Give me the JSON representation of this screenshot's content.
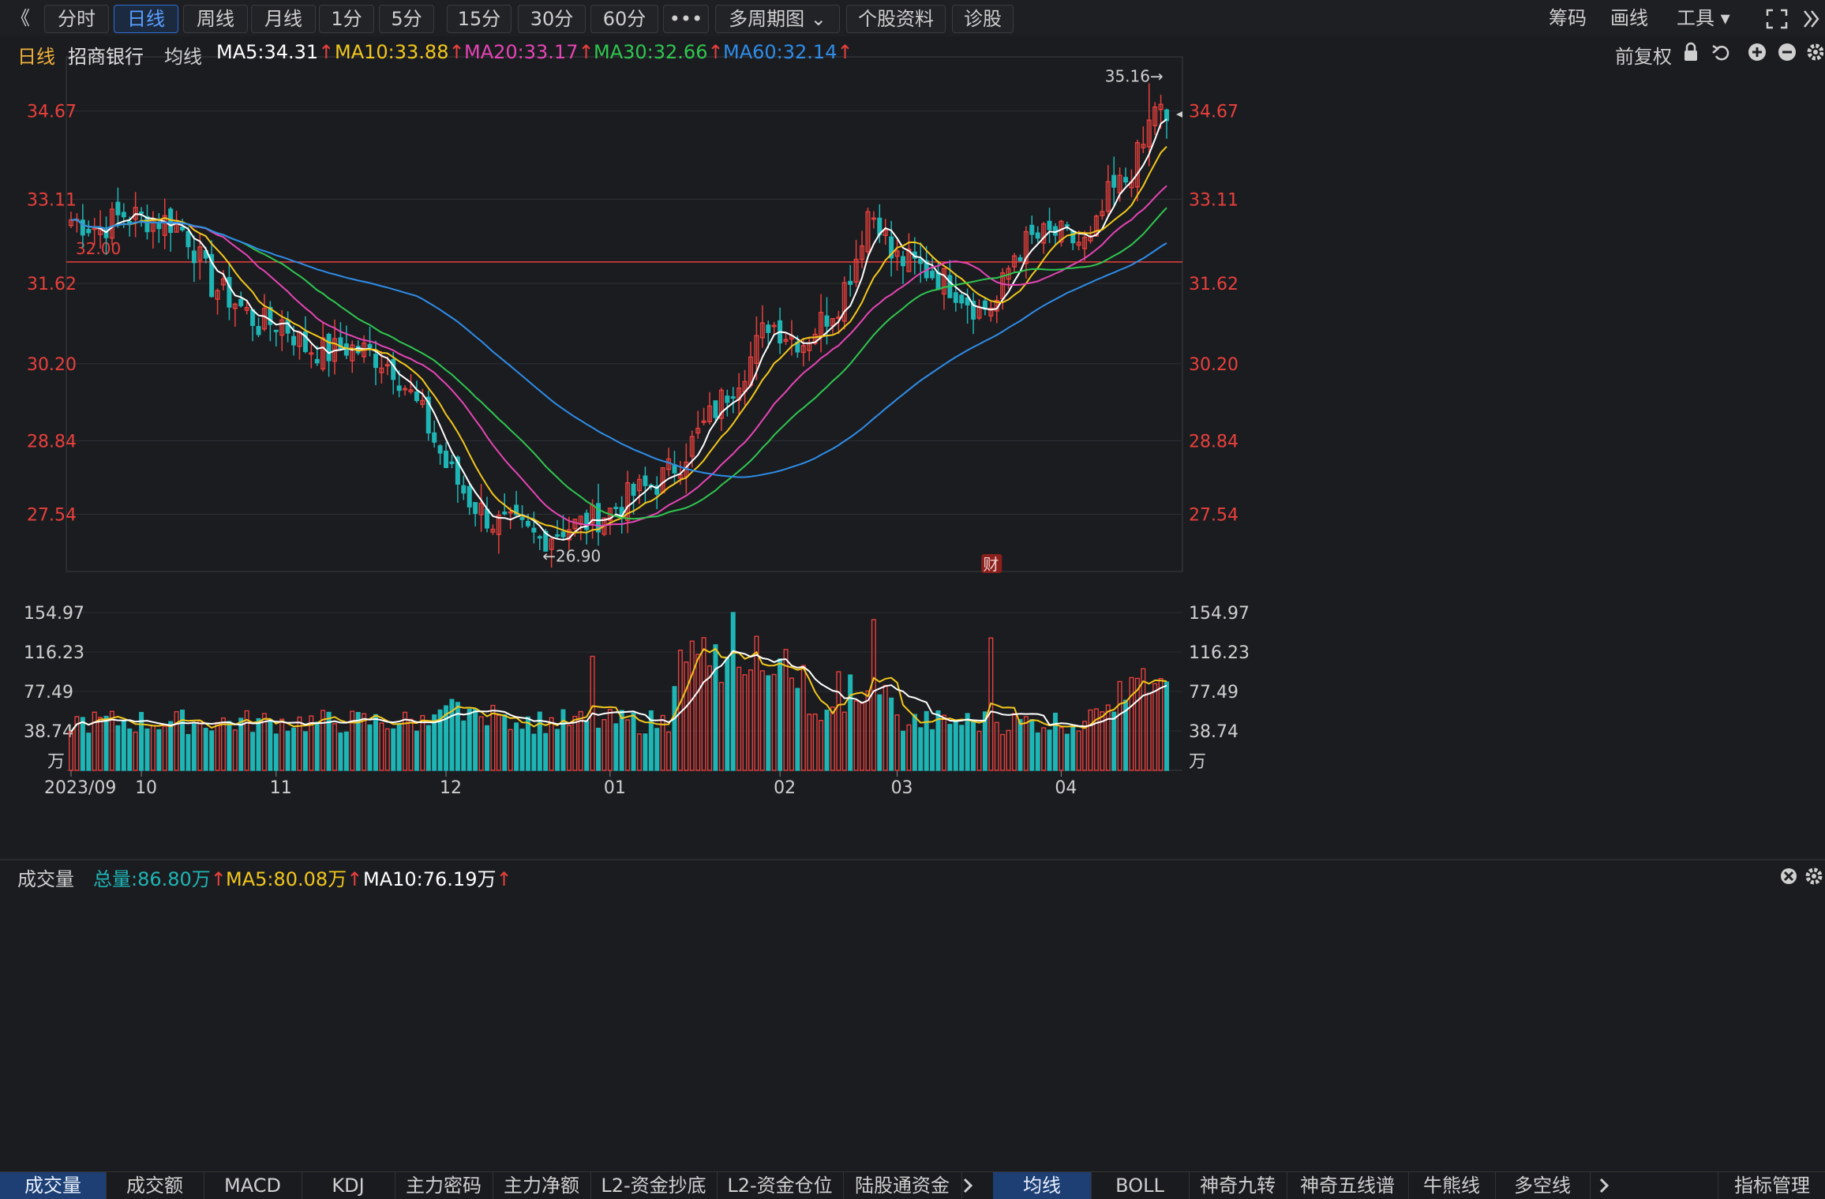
{
  "toolbar": {
    "back": "《",
    "items": [
      "分时",
      "日线",
      "周线",
      "月线",
      "1分",
      "5分",
      "15分",
      "30分",
      "60分",
      "•••",
      "多周期图 ⌄",
      "个股资料",
      "诊股"
    ],
    "active_index": 1,
    "right": [
      "筹码",
      "画线",
      "工具 ▾"
    ]
  },
  "info": {
    "period": "日线",
    "name": "招商银行",
    "ma_label": "均线",
    "ma5": "MA5:34.31",
    "ma10": "MA10:33.88",
    "ma20": "MA20:33.17",
    "ma30": "MA30:32.66",
    "ma60": "MA60:32.14",
    "adjust": "前复权"
  },
  "volume_info": {
    "label": "成交量",
    "total": "总量:86.80万",
    "ma5": "MA5:80.08万",
    "ma10": "MA10:76.19万"
  },
  "colors": {
    "up": "#e8403c",
    "down": "#1fb5b5",
    "ma5": "#ffffff",
    "ma10": "#f2c71c",
    "ma20": "#e545b4",
    "ma30": "#2fc64f",
    "ma60": "#2e8de8"
  },
  "bottom_tabs_left": [
    "成交量",
    "成交额",
    "MACD",
    "KDJ",
    "主力密码",
    "主力净额",
    "L2-资金抄底",
    "L2-资金仓位",
    "陆股通资金"
  ],
  "bottom_tabs_right": [
    "均线",
    "BOLL",
    "神奇九转",
    "神奇五线谱",
    "牛熊线",
    "多空线"
  ],
  "bottom_manage": "指标管理",
  "chart_data": {
    "type": "candlestick",
    "price_axis": {
      "ticks": [
        "34.67",
        "33.11",
        "31.62",
        "30.20",
        "28.84",
        "27.54"
      ],
      "ylim": [
        26.5,
        35.6
      ]
    },
    "volume_axis": {
      "ticks": [
        "154.97",
        "116.23",
        "77.49",
        "38.74"
      ],
      "unit": "万",
      "ylim": [
        0,
        155
      ]
    },
    "x_ticks": [
      {
        "label": "2023/09",
        "index": 0
      },
      {
        "label": "10",
        "index": 12
      },
      {
        "label": "11",
        "index": 35
      },
      {
        "label": "12",
        "index": 64
      },
      {
        "label": "01",
        "index": 92
      },
      {
        "label": "02",
        "index": 121
      },
      {
        "label": "03",
        "index": 141
      },
      {
        "label": "04",
        "index": 169
      }
    ],
    "annotations": {
      "high": "35.16→",
      "low": "←26.90",
      "ref_line_label": "32.00",
      "ref_line_value": 32.0,
      "event_marker": "财"
    },
    "count": 197,
    "waypoints": [
      [
        0,
        32.75
      ],
      [
        5,
        32.6
      ],
      [
        9,
        32.85
      ],
      [
        14,
        32.75
      ],
      [
        18,
        32.7
      ],
      [
        20,
        32.45
      ],
      [
        24,
        31.6
      ],
      [
        28,
        31.3
      ],
      [
        32,
        30.9
      ],
      [
        36,
        30.95
      ],
      [
        40,
        30.5
      ],
      [
        44,
        30.4
      ],
      [
        47,
        30.5
      ],
      [
        51,
        30.4
      ],
      [
        55,
        30.15
      ],
      [
        60,
        29.3
      ],
      [
        64,
        28.4
      ],
      [
        68,
        27.8
      ],
      [
        72,
        27.4
      ],
      [
        76,
        27.3
      ],
      [
        80,
        27.1
      ],
      [
        84,
        27.3
      ],
      [
        88,
        27.4
      ],
      [
        92,
        27.6
      ],
      [
        96,
        27.9
      ],
      [
        100,
        28.1
      ],
      [
        104,
        28.5
      ],
      [
        108,
        29.1
      ],
      [
        112,
        29.7
      ],
      [
        116,
        30.3
      ],
      [
        119,
        30.95
      ],
      [
        122,
        30.75
      ],
      [
        125,
        30.6
      ],
      [
        128,
        30.95
      ],
      [
        131,
        31.3
      ],
      [
        134,
        32.1
      ],
      [
        136,
        32.9
      ],
      [
        138,
        32.75
      ],
      [
        140,
        32.1
      ],
      [
        144,
        31.95
      ],
      [
        148,
        31.75
      ],
      [
        152,
        31.45
      ],
      [
        155,
        31.15
      ],
      [
        158,
        31.3
      ],
      [
        161,
        32.15
      ],
      [
        164,
        32.4
      ],
      [
        168,
        32.5
      ],
      [
        172,
        32.35
      ],
      [
        174,
        32.3
      ],
      [
        177,
        33.15
      ],
      [
        180,
        33.45
      ],
      [
        183,
        34.05
      ],
      [
        185,
        34.8
      ],
      [
        187,
        34.5
      ]
    ],
    "series": [
      {
        "name": "MA5",
        "values": [
          34.31
        ]
      },
      {
        "name": "MA10",
        "values": [
          33.88
        ]
      },
      {
        "name": "MA20",
        "values": [
          33.17
        ]
      },
      {
        "name": "MA30",
        "values": [
          32.66
        ]
      },
      {
        "name": "MA60",
        "values": [
          32.14
        ]
      }
    ]
  }
}
